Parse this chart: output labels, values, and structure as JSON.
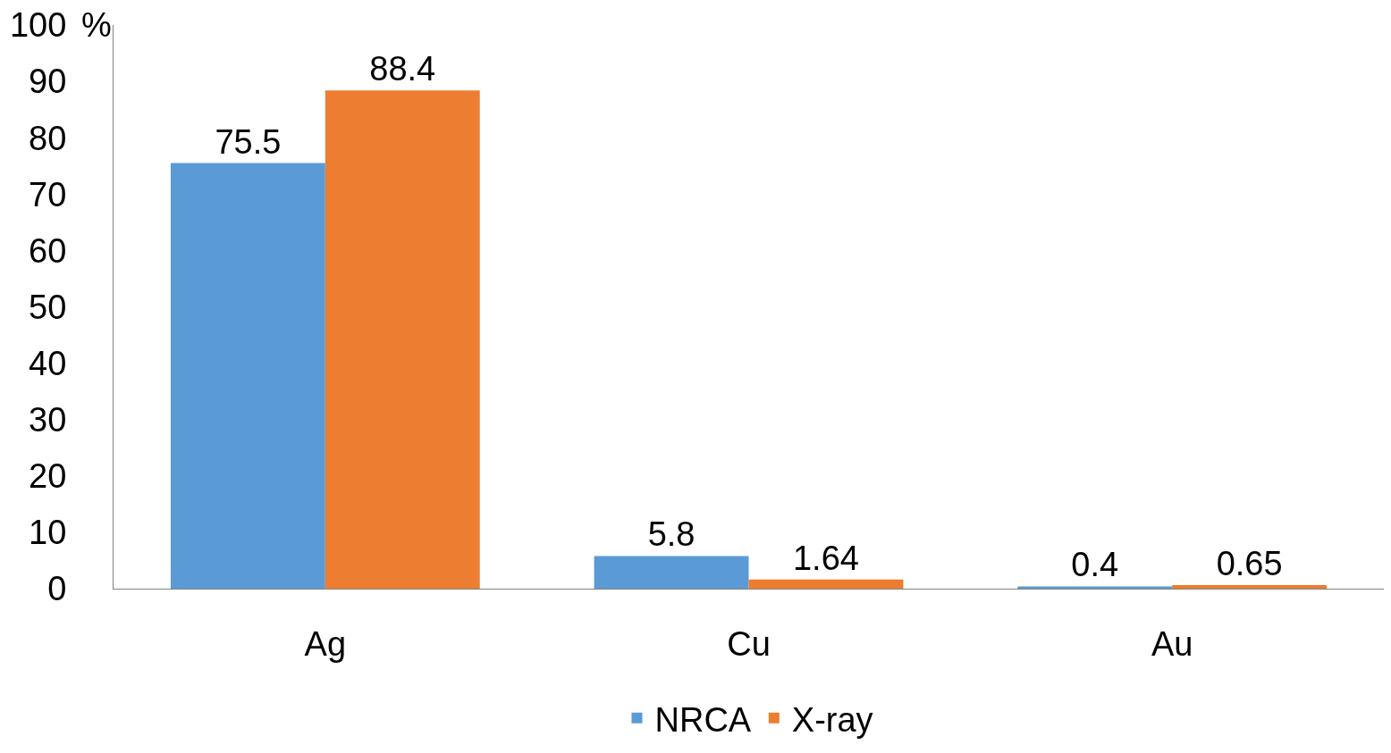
{
  "chart_data": {
    "type": "bar",
    "ylabel": "%",
    "categories": [
      "Ag",
      "Cu",
      "Au"
    ],
    "series": [
      {
        "name": "NRCA",
        "color": "#5b9bd5",
        "values": [
          75.5,
          5.8,
          0.4
        ]
      },
      {
        "name": "X-ray",
        "color": "#ed7d31",
        "values": [
          88.4,
          1.64,
          0.65
        ]
      }
    ],
    "ylim": [
      0,
      100
    ],
    "yticks": [
      0,
      10,
      20,
      30,
      40,
      50,
      60,
      70,
      80,
      90,
      100
    ],
    "data_labels": true,
    "legend": "bottom"
  }
}
